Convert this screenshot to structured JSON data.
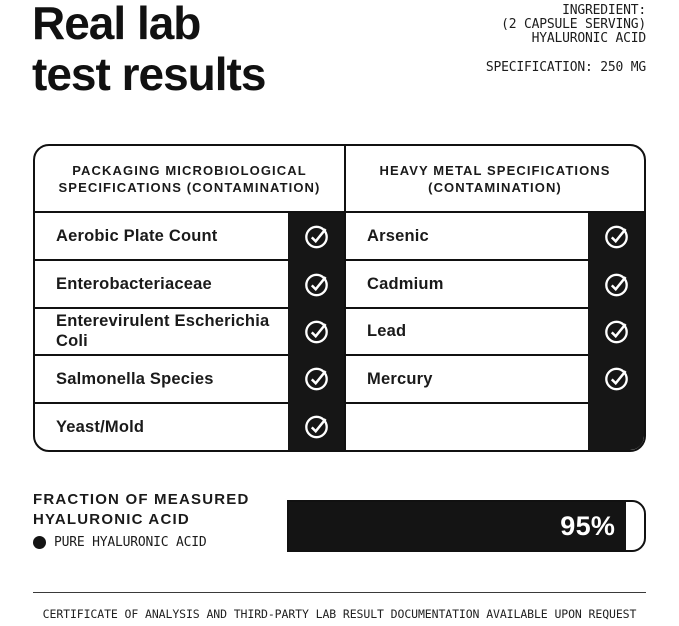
{
  "page": {
    "background": "#ffffff",
    "ink": "#141414"
  },
  "header": {
    "title_line1": "Real lab",
    "title_line2": "test results",
    "ingredient": {
      "line1": "INGREDIENT:",
      "line2": "(2 CAPSULE SERVING)",
      "line3": "HYALURONIC ACID"
    },
    "specification": "SPECIFICATION: 250 MG"
  },
  "spec_tables": [
    {
      "header_line1": "PACKAGING MICROBIOLOGICAL",
      "header_line2": "SPECIFICATIONS (CONTAMINATION)",
      "rows": [
        {
          "label": "Aerobic Plate Count",
          "passed": true
        },
        {
          "label": "Enterobacteriaceae",
          "passed": true
        },
        {
          "label": "Enterevirulent Escherichia Coli",
          "passed": true
        },
        {
          "label": "Salmonella Species",
          "passed": true
        },
        {
          "label": "Yeast/Mold",
          "passed": true
        }
      ]
    },
    {
      "header_line1": "HEAVY METAL SPECIFICATIONS",
      "header_line2": "(CONTAMINATION)",
      "rows": [
        {
          "label": "Arsenic",
          "passed": true
        },
        {
          "label": "Cadmium",
          "passed": true
        },
        {
          "label": "Lead",
          "passed": true
        },
        {
          "label": "Mercury",
          "passed": true
        },
        {
          "label": "",
          "passed": false
        }
      ]
    }
  ],
  "chart_data": {
    "type": "bar",
    "title_line1": "FRACTION OF MEASURED",
    "title_line2": "HYALURONIC ACID",
    "legend": "PURE HYALURONIC ACID",
    "categories": [
      "PURE HYALURONIC ACID"
    ],
    "values": [
      95
    ],
    "value_label": "95%",
    "bar_color": "#141414",
    "xlim": [
      0,
      100
    ]
  },
  "footer": {
    "note": "CERTIFICATE OF ANALYSIS AND THIRD-PARTY LAB RESULT DOCUMENTATION AVAILABLE UPON REQUEST"
  }
}
